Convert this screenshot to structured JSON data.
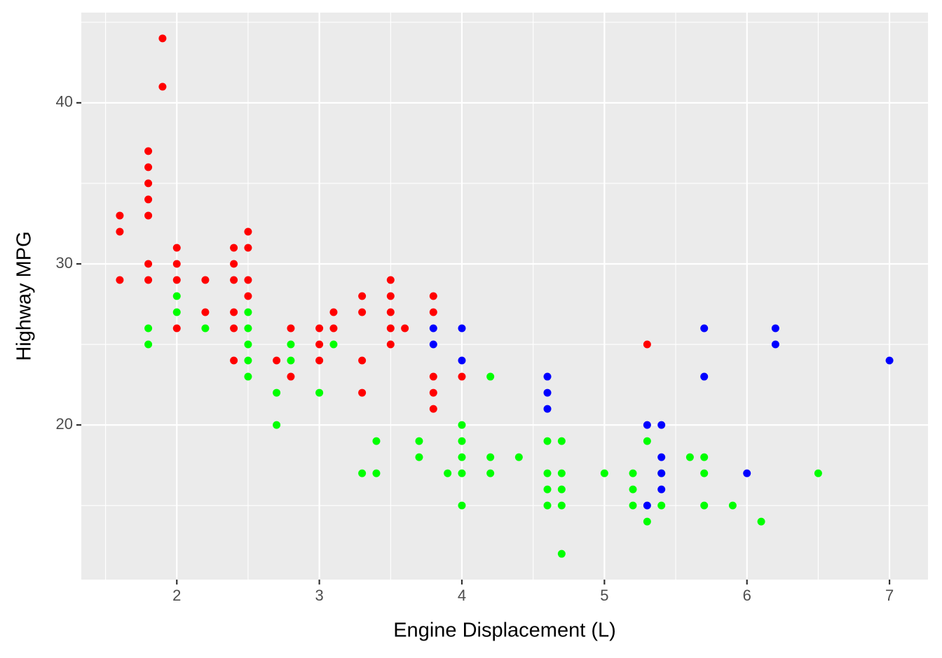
{
  "chart_data": {
    "type": "scatter",
    "x_label": "Engine Displacement (L)",
    "y_label": "Highway MPG",
    "xlim": [
      1.33,
      7.27
    ],
    "ylim": [
      10.4,
      45.6
    ],
    "xticks": [
      2,
      3,
      4,
      5,
      6,
      7
    ],
    "yticks": [
      20,
      30,
      40
    ],
    "minor_xticks": [
      1.5,
      2.5,
      3.5,
      4.5,
      5.5,
      6.5
    ],
    "minor_yticks": [
      15,
      25,
      35,
      45
    ],
    "grid": true,
    "series": [
      {
        "color": "#ff0000",
        "x": [
          1.6,
          1.6,
          1.6,
          1.8,
          1.8,
          1.8,
          1.8,
          1.8,
          1.8,
          1.8,
          1.9,
          1.9,
          2.0,
          2.0,
          2.0,
          2.0,
          2.2,
          2.2,
          2.4,
          2.4,
          2.4,
          2.4,
          2.4,
          2.4,
          2.5,
          2.5,
          2.5,
          2.5,
          2.7,
          2.8,
          2.8,
          3.0,
          3.0,
          3.0,
          3.1,
          3.1,
          3.3,
          3.3,
          3.3,
          3.3,
          3.5,
          3.5,
          3.5,
          3.5,
          3.5,
          3.6,
          3.8,
          3.8,
          3.8,
          3.8,
          3.8,
          4.0,
          5.3
        ],
        "y": [
          33,
          32,
          29,
          37,
          36,
          35,
          34,
          33,
          30,
          29,
          44,
          41,
          31,
          30,
          29,
          26,
          29,
          27,
          31,
          30,
          29,
          27,
          26,
          24,
          32,
          31,
          29,
          28,
          24,
          26,
          23,
          26,
          25,
          24,
          27,
          26,
          28,
          27,
          24,
          22,
          29,
          28,
          27,
          26,
          25,
          26,
          28,
          27,
          23,
          22,
          21,
          23,
          25
        ]
      },
      {
        "color": "#00ff00",
        "x": [
          1.8,
          1.8,
          2.0,
          2.0,
          2.2,
          2.5,
          2.5,
          2.5,
          2.5,
          2.5,
          2.7,
          2.7,
          2.8,
          2.8,
          3.0,
          3.1,
          3.3,
          3.4,
          3.4,
          3.7,
          3.7,
          3.9,
          4.0,
          4.0,
          4.0,
          4.0,
          4.0,
          4.2,
          4.2,
          4.2,
          4.4,
          4.6,
          4.6,
          4.6,
          4.6,
          4.7,
          4.7,
          4.7,
          4.7,
          4.7,
          5.0,
          5.2,
          5.2,
          5.2,
          5.3,
          5.3,
          5.4,
          5.4,
          5.6,
          5.7,
          5.7,
          5.7,
          5.9,
          6.1,
          6.5
        ],
        "y": [
          26,
          25,
          28,
          27,
          26,
          27,
          26,
          25,
          24,
          23,
          22,
          20,
          25,
          24,
          22,
          25,
          17,
          19,
          17,
          19,
          18,
          17,
          20,
          19,
          18,
          17,
          15,
          23,
          18,
          17,
          18,
          19,
          17,
          16,
          15,
          19,
          17,
          16,
          15,
          12,
          17,
          17,
          16,
          15,
          19,
          14,
          17,
          15,
          18,
          18,
          17,
          15,
          15,
          14,
          17
        ]
      },
      {
        "color": "#0000ff",
        "x": [
          3.8,
          3.8,
          4.0,
          4.0,
          4.6,
          4.6,
          4.6,
          5.3,
          5.3,
          5.4,
          5.4,
          5.4,
          5.4,
          5.7,
          5.7,
          6.0,
          6.2,
          6.2,
          7.0
        ],
        "y": [
          26,
          25,
          26,
          24,
          23,
          22,
          21,
          20,
          15,
          20,
          18,
          17,
          16,
          26,
          23,
          17,
          26,
          25,
          24
        ]
      }
    ]
  }
}
